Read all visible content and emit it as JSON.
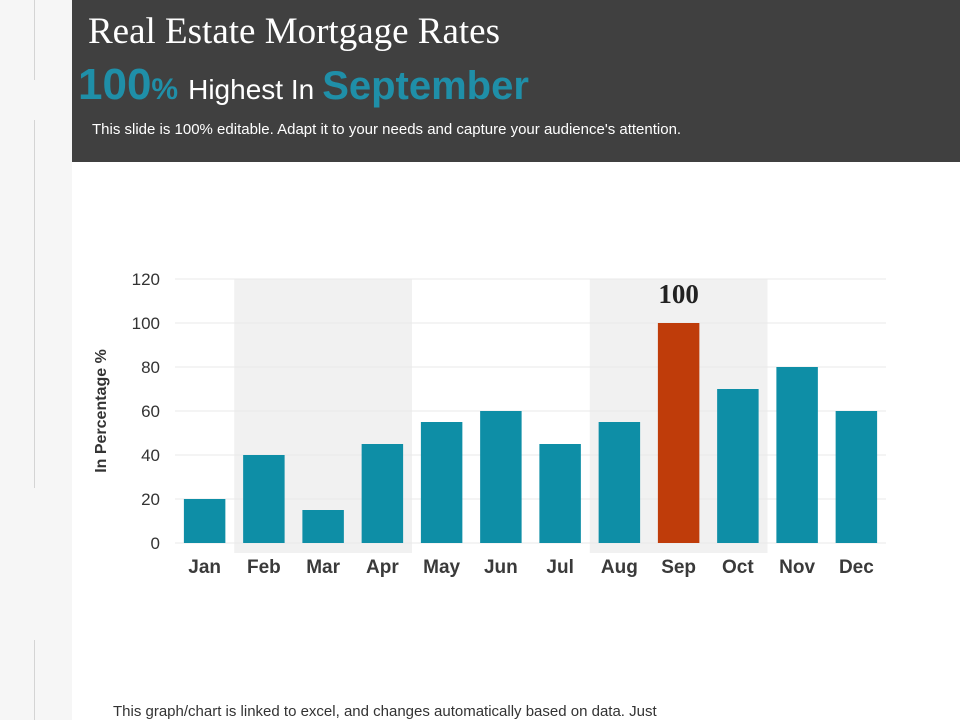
{
  "slide": {
    "title": "Real Estate Mortgage Rates",
    "headline": {
      "value": "100",
      "unit": "%",
      "text": "Highest  In",
      "month": "September"
    },
    "description": "This slide is 100% editable. Adapt it to your needs and capture your audience's attention.",
    "footer": "This graph/chart is linked to excel, and changes automatically based on data. Just"
  },
  "colors": {
    "header_bg": "#404040",
    "accent": "#1f8fa8",
    "bar": "#0e8ea6",
    "highlight_bar": "#bf3c0a",
    "band": "#f1f1f1"
  },
  "chart_data": {
    "type": "bar",
    "title": "",
    "xlabel": "",
    "ylabel": "In Percentage %",
    "ylim": [
      0,
      120
    ],
    "yticks": [
      0,
      20,
      40,
      60,
      80,
      100,
      120
    ],
    "categories": [
      "Jan",
      "Feb",
      "Mar",
      "Apr",
      "May",
      "Jun",
      "Jul",
      "Aug",
      "Sep",
      "Oct",
      "Nov",
      "Dec"
    ],
    "values": [
      20,
      40,
      15,
      45,
      55,
      60,
      45,
      55,
      100,
      70,
      80,
      60
    ],
    "highlight": {
      "category": "Sep",
      "label": "100"
    },
    "shaded_ranges": [
      [
        "Feb",
        "Apr"
      ],
      [
        "Aug",
        "Oct"
      ]
    ],
    "grid": true,
    "legend": "none"
  }
}
